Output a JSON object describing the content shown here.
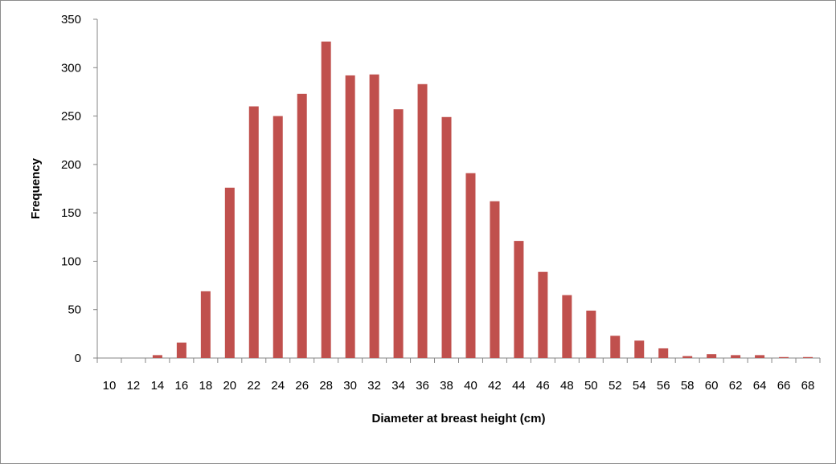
{
  "chart_data": {
    "type": "bar",
    "title": "",
    "xlabel": "Diameter at breast height (cm)",
    "ylabel": "Frequency",
    "ylim": [
      0,
      350
    ],
    "yticks": [
      0,
      50,
      100,
      150,
      200,
      250,
      300,
      350
    ],
    "grid": false,
    "legend": "none",
    "bar_color": "#c0504d",
    "categories": [
      "10",
      "12",
      "14",
      "16",
      "18",
      "20",
      "22",
      "24",
      "26",
      "28",
      "30",
      "32",
      "34",
      "36",
      "38",
      "40",
      "42",
      "44",
      "46",
      "48",
      "50",
      "52",
      "54",
      "56",
      "58",
      "60",
      "62",
      "64",
      "66",
      "68"
    ],
    "values": [
      0,
      0,
      3,
      16,
      69,
      176,
      260,
      250,
      273,
      327,
      292,
      293,
      257,
      283,
      249,
      191,
      162,
      121,
      89,
      65,
      49,
      23,
      18,
      10,
      2,
      4,
      3,
      3,
      1,
      1
    ]
  }
}
